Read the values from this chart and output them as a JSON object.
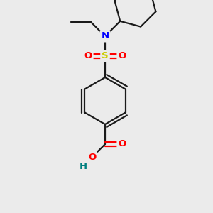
{
  "background_color": "#ebebeb",
  "bond_color": "#1a1a1a",
  "line_width": 1.6,
  "atom_colors": {
    "N": "#0000ff",
    "S": "#cccc00",
    "O": "#ff0000",
    "H": "#008080",
    "C": "#1a1a1a"
  },
  "font_size": 9.5,
  "figsize": [
    3.0,
    3.0
  ],
  "dpi": 100
}
